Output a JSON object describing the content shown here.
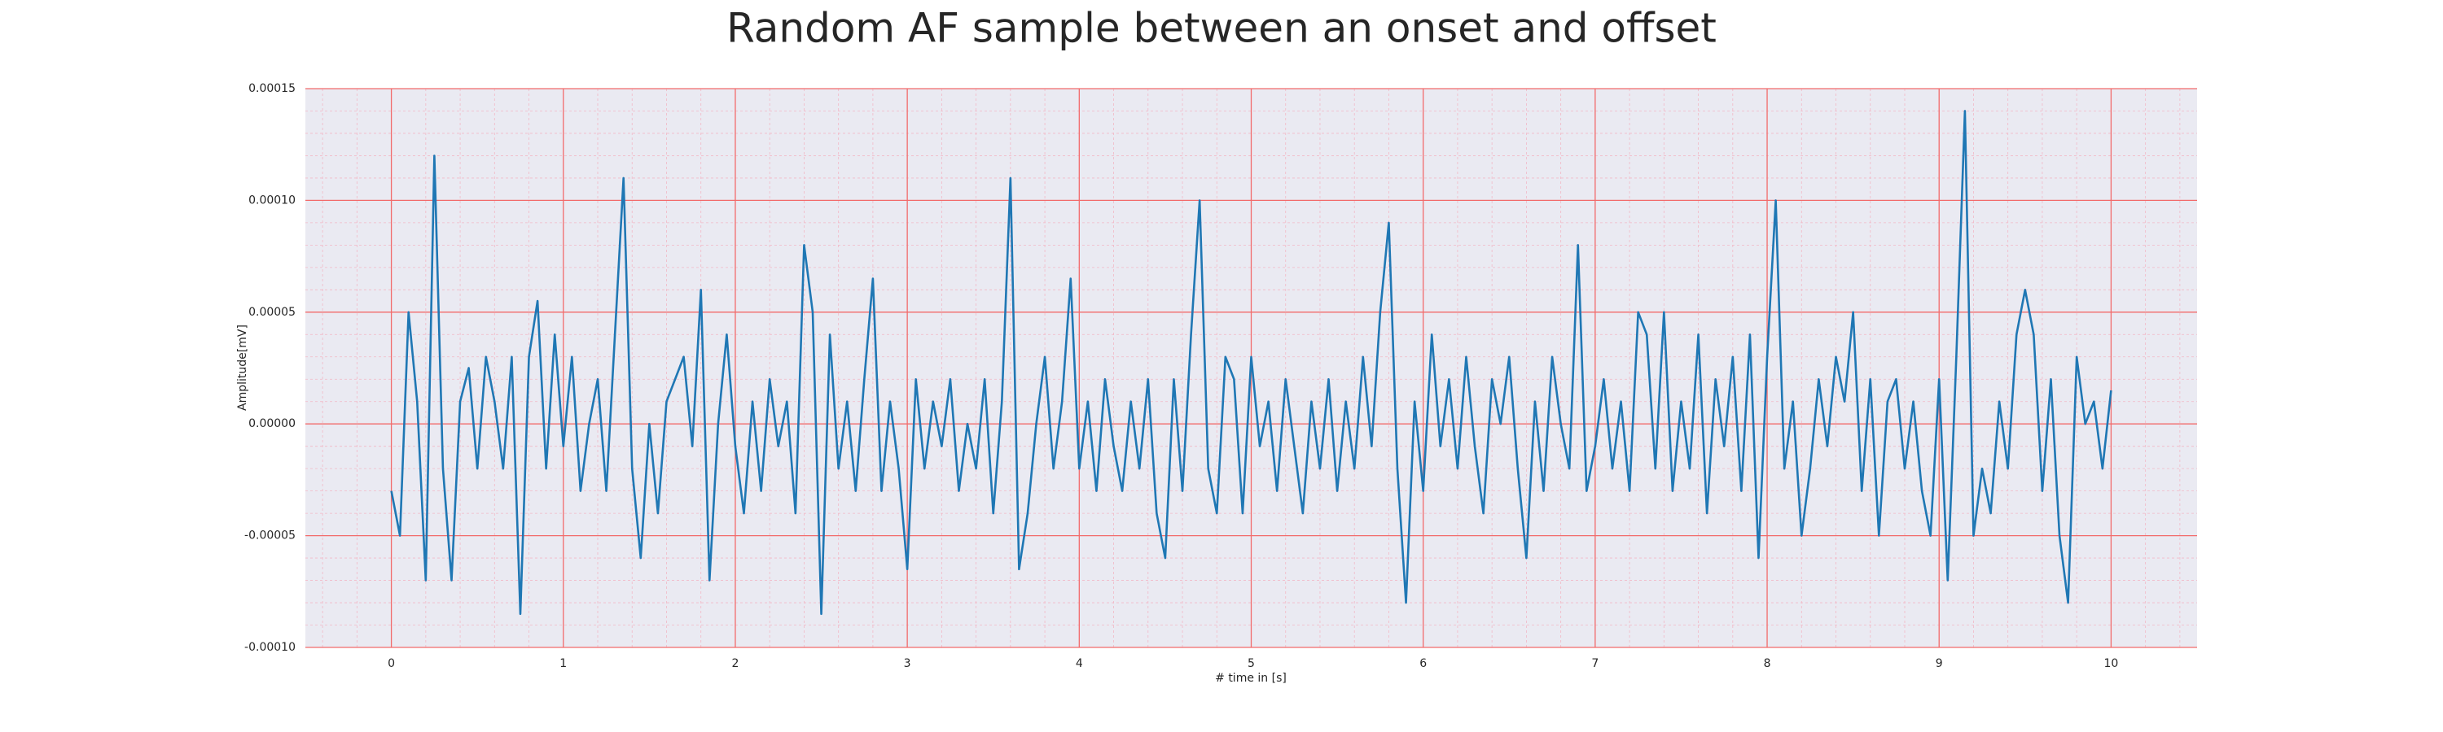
{
  "chart_data": {
    "type": "line",
    "title": "Random AF sample between an onset and offset",
    "x_label": "# time in [s]",
    "y_label": "Amplitude[mV]",
    "color": "#1f77b4",
    "grid": true,
    "minor_grid": true,
    "xlim": [
      -0.5,
      10.5
    ],
    "ylim": [
      -0.0001,
      0.00015
    ],
    "xticks": [
      0,
      1,
      2,
      3,
      4,
      5,
      6,
      7,
      8,
      9,
      10
    ],
    "yticks": [
      {
        "value": -0.0001,
        "label": "-0.00010"
      },
      {
        "value": -5e-05,
        "label": "-0.00005"
      },
      {
        "value": 0,
        "label": "0.00000"
      },
      {
        "value": 5e-05,
        "label": "0.00005"
      },
      {
        "value": 0.0001,
        "label": "0.00010"
      },
      {
        "value": 0.00015,
        "label": "0.00015"
      }
    ],
    "xminorticks": [
      -0.4,
      -0.2,
      0.2,
      0.4,
      0.6,
      0.8,
      1.2,
      1.4,
      1.6,
      1.8,
      2.2,
      2.4,
      2.6,
      2.8,
      3.2,
      3.4,
      3.6,
      3.8,
      4.2,
      4.4,
      4.6,
      4.8,
      5.2,
      5.4,
      5.6,
      5.8,
      6.2,
      6.4,
      6.6,
      6.8,
      7.2,
      7.4,
      7.6,
      7.8,
      8.2,
      8.4,
      8.6,
      8.8,
      9.2,
      9.4,
      9.6,
      9.8,
      10.2,
      10.4
    ],
    "yminorticks": [
      -9e-05,
      -8e-05,
      -7e-05,
      -6e-05,
      -4e-05,
      -3e-05,
      -2e-05,
      -1e-05,
      1e-05,
      2e-05,
      3e-05,
      4e-05,
      6e-05,
      7e-05,
      8e-05,
      9e-05,
      0.00011,
      0.00012,
      0.00013,
      0.00014
    ],
    "x": [
      0,
      0.05,
      0.1,
      0.15,
      0.2,
      0.25,
      0.3,
      0.35,
      0.4,
      0.45,
      0.5,
      0.55,
      0.6,
      0.65,
      0.7,
      0.75,
      0.8,
      0.85,
      0.9,
      0.95,
      1,
      1.05,
      1.1,
      1.15,
      1.2,
      1.25,
      1.3,
      1.35,
      1.4,
      1.45,
      1.5,
      1.55,
      1.6,
      1.65,
      1.7,
      1.75,
      1.8,
      1.85,
      1.9,
      1.95,
      2,
      2.05,
      2.1,
      2.15,
      2.2,
      2.25,
      2.3,
      2.35,
      2.4,
      2.45,
      2.5,
      2.55,
      2.6,
      2.65,
      2.7,
      2.75,
      2.8,
      2.85,
      2.9,
      2.95,
      3,
      3.05,
      3.1,
      3.15,
      3.2,
      3.25,
      3.3,
      3.35,
      3.4,
      3.45,
      3.5,
      3.55,
      3.6,
      3.65,
      3.7,
      3.75,
      3.8,
      3.85,
      3.9,
      3.95,
      4,
      4.05,
      4.1,
      4.15,
      4.2,
      4.25,
      4.3,
      4.35,
      4.4,
      4.45,
      4.5,
      4.55,
      4.6,
      4.65,
      4.7,
      4.75,
      4.8,
      4.85,
      4.9,
      4.95,
      5,
      5.05,
      5.1,
      5.15,
      5.2,
      5.25,
      5.3,
      5.35,
      5.4,
      5.45,
      5.5,
      5.55,
      5.6,
      5.65,
      5.7,
      5.75,
      5.8,
      5.85,
      5.9,
      5.95,
      6,
      6.05,
      6.1,
      6.15,
      6.2,
      6.25,
      6.3,
      6.35,
      6.4,
      6.45,
      6.5,
      6.55,
      6.6,
      6.65,
      6.7,
      6.75,
      6.8,
      6.85,
      6.9,
      6.95,
      7,
      7.05,
      7.1,
      7.15,
      7.2,
      7.25,
      7.3,
      7.35,
      7.4,
      7.45,
      7.5,
      7.55,
      7.6,
      7.65,
      7.7,
      7.75,
      7.8,
      7.85,
      7.9,
      7.95,
      8,
      8.05,
      8.1,
      8.15,
      8.2,
      8.25,
      8.3,
      8.35,
      8.4,
      8.45,
      8.5,
      8.55,
      8.6,
      8.65,
      8.7,
      8.75,
      8.8,
      8.85,
      8.9,
      8.95,
      9,
      9.05,
      9.1,
      9.15,
      9.2,
      9.25,
      9.3,
      9.35,
      9.4,
      9.45,
      9.5,
      9.55,
      9.6,
      9.65,
      9.7,
      9.75,
      9.8,
      9.85,
      9.9,
      9.95,
      10
    ],
    "values": [
      -3e-05,
      -5e-05,
      5e-05,
      1e-05,
      -7e-05,
      0.00012,
      -2e-05,
      -7e-05,
      1e-05,
      2.5e-05,
      -2e-05,
      3e-05,
      1e-05,
      -2e-05,
      3e-05,
      -8.5e-05,
      3e-05,
      5.5e-05,
      -2e-05,
      4e-05,
      -1e-05,
      3e-05,
      -3e-05,
      0,
      2e-05,
      -3e-05,
      4e-05,
      0.00011,
      -2e-05,
      -6e-05,
      0,
      -4e-05,
      1e-05,
      2e-05,
      3e-05,
      -1e-05,
      6e-05,
      -7e-05,
      0,
      4e-05,
      -1e-05,
      -4e-05,
      1e-05,
      -3e-05,
      2e-05,
      -1e-05,
      1e-05,
      -4e-05,
      8e-05,
      5e-05,
      -8.5e-05,
      4e-05,
      -2e-05,
      1e-05,
      -3e-05,
      2e-05,
      6.5e-05,
      -3e-05,
      1e-05,
      -2e-05,
      -6.5e-05,
      2e-05,
      -2e-05,
      1e-05,
      -1e-05,
      2e-05,
      -3e-05,
      0,
      -2e-05,
      2e-05,
      -4e-05,
      1e-05,
      0.00011,
      -6.5e-05,
      -4e-05,
      0,
      3e-05,
      -2e-05,
      1e-05,
      6.5e-05,
      -2e-05,
      1e-05,
      -3e-05,
      2e-05,
      -1e-05,
      -3e-05,
      1e-05,
      -2e-05,
      2e-05,
      -4e-05,
      -6e-05,
      2e-05,
      -3e-05,
      4e-05,
      0.0001,
      -2e-05,
      -4e-05,
      3e-05,
      2e-05,
      -4e-05,
      3e-05,
      -1e-05,
      1e-05,
      -3e-05,
      2e-05,
      -1e-05,
      -4e-05,
      1e-05,
      -2e-05,
      2e-05,
      -3e-05,
      1e-05,
      -2e-05,
      3e-05,
      -1e-05,
      5e-05,
      9e-05,
      -2e-05,
      -8e-05,
      1e-05,
      -3e-05,
      4e-05,
      -1e-05,
      2e-05,
      -2e-05,
      3e-05,
      -1e-05,
      -4e-05,
      2e-05,
      0,
      3e-05,
      -2e-05,
      -6e-05,
      1e-05,
      -3e-05,
      3e-05,
      0,
      -2e-05,
      8e-05,
      -3e-05,
      -1e-05,
      2e-05,
      -2e-05,
      1e-05,
      -3e-05,
      5e-05,
      4e-05,
      -2e-05,
      5e-05,
      -3e-05,
      1e-05,
      -2e-05,
      4e-05,
      -4e-05,
      2e-05,
      -1e-05,
      3e-05,
      -3e-05,
      4e-05,
      -6e-05,
      3e-05,
      0.0001,
      -2e-05,
      1e-05,
      -5e-05,
      -2e-05,
      2e-05,
      -1e-05,
      3e-05,
      1e-05,
      5e-05,
      -3e-05,
      2e-05,
      -5e-05,
      1e-05,
      2e-05,
      -2e-05,
      1e-05,
      -3e-05,
      -5e-05,
      2e-05,
      -7e-05,
      3e-05,
      0.00014,
      -5e-05,
      -2e-05,
      -4e-05,
      1e-05,
      -2e-05,
      4e-05,
      6e-05,
      4e-05,
      -3e-05,
      2e-05,
      -5e-05,
      -8e-05,
      3e-05,
      0,
      1e-05,
      -2e-05,
      1.5e-05
    ]
  }
}
